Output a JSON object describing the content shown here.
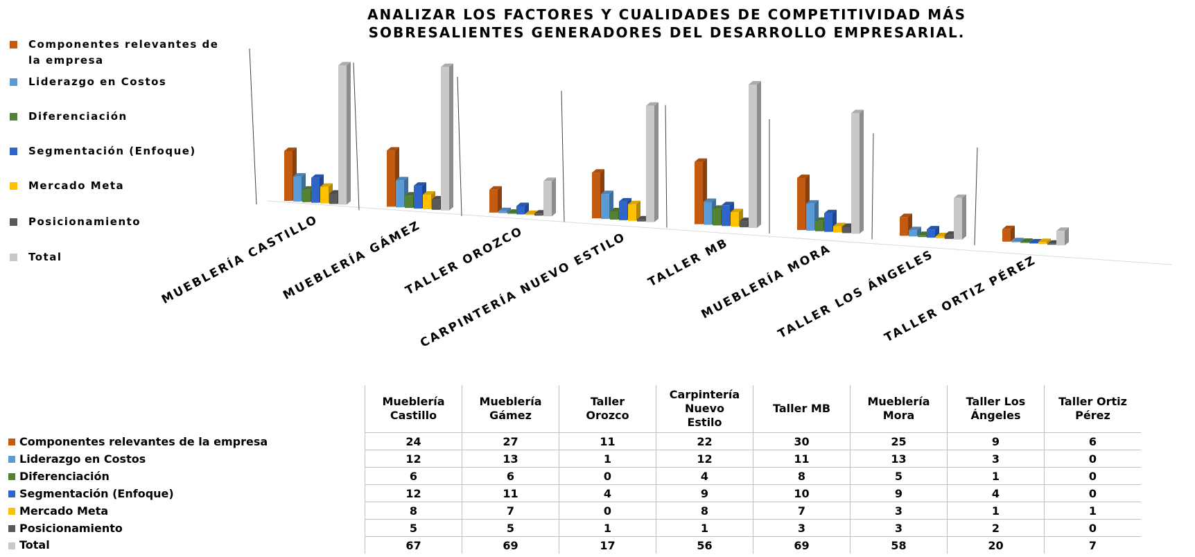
{
  "title_lines": [
    "ANALIZAR LOS FACTORES Y CUALIDADES DE COMPETITIVIDAD MÁS",
    "SOBRESALIENTES GENERADORES DEL DESARROLLO EMPRESARIAL."
  ],
  "legend": {
    "items": [
      {
        "label_lines": [
          "Componentes relevantes de",
          "la empresa"
        ],
        "color": "#C55A11"
      },
      {
        "label_lines": [
          "Liderazgo en Costos"
        ],
        "color": "#5B9BD5"
      },
      {
        "label_lines": [
          "Diferenciación"
        ],
        "color": "#548235"
      },
      {
        "label_lines": [
          "Segmentación (Enfoque)"
        ],
        "color": "#2F64C8"
      },
      {
        "label_lines": [
          "Mercado Meta"
        ],
        "color": "#FFC000"
      },
      {
        "label_lines": [
          "Posicionamiento"
        ],
        "color": "#595959"
      },
      {
        "label_lines": [
          "Total"
        ],
        "color": "#C9C9C9"
      }
    ]
  },
  "axis_categories": [
    "MUEBLERÍA CASTILLO",
    "MUEBLERÍA GÁMEZ",
    "TALLER OROZCO",
    "CARPINTERÍA NUEVO ESTILO",
    "TALLER MB",
    "MUEBLERÍA MORA",
    "TALLER LOS ÁNGELES",
    "TALLER ORTIZ PÉREZ"
  ],
  "table": {
    "columns": [
      [
        "Mueblería",
        "Castillo"
      ],
      [
        "Mueblería",
        "Gámez"
      ],
      [
        "Taller",
        "Orozco"
      ],
      [
        "Carpintería",
        "Nuevo",
        "Estilo"
      ],
      [
        "Taller MB"
      ],
      [
        "Mueblería",
        "Mora"
      ],
      [
        "Taller Los",
        "Ángeles"
      ],
      [
        "Taller Ortiz",
        "Pérez"
      ]
    ],
    "rows": [
      {
        "label": "Componentes relevantes de la empresa",
        "color": "#C55A11"
      },
      {
        "label": "Liderazgo en Costos",
        "color": "#5B9BD5"
      },
      {
        "label": "Diferenciación",
        "color": "#548235"
      },
      {
        "label": "Segmentación (Enfoque)",
        "color": "#2F64C8"
      },
      {
        "label": "Mercado Meta",
        "color": "#FFC000"
      },
      {
        "label": "Posicionamiento",
        "color": "#595959"
      },
      {
        "label": "Total",
        "color": "#C9C9C9"
      }
    ]
  },
  "chart_data": {
    "type": "bar",
    "subtype": "3d-clustered-column-with-data-table",
    "title": "ANALIZAR LOS FACTORES Y CUALIDADES DE COMPETITIVIDAD MÁS SOBRESALIENTES GENERADORES DEL DESARROLLO EMPRESARIAL.",
    "categories": [
      "Mueblería Castillo",
      "Mueblería Gámez",
      "Taller Orozco",
      "Carpintería Nuevo Estilo",
      "Taller MB",
      "Mueblería Mora",
      "Taller Los Ángeles",
      "Taller Ortiz Pérez"
    ],
    "series": [
      {
        "name": "Componentes relevantes de la empresa",
        "values": [
          24,
          27,
          11,
          22,
          30,
          25,
          9,
          6
        ]
      },
      {
        "name": "Liderazgo en Costos",
        "values": [
          12,
          13,
          1,
          12,
          11,
          13,
          3,
          0
        ]
      },
      {
        "name": "Diferenciación",
        "values": [
          6,
          6,
          0,
          4,
          8,
          5,
          1,
          0
        ]
      },
      {
        "name": "Segmentación (Enfoque)",
        "values": [
          12,
          11,
          4,
          9,
          10,
          9,
          4,
          0
        ]
      },
      {
        "name": "Mercado Meta",
        "values": [
          8,
          7,
          0,
          8,
          7,
          3,
          1,
          1
        ]
      },
      {
        "name": "Posicionamiento",
        "values": [
          5,
          5,
          1,
          1,
          3,
          3,
          2,
          0
        ]
      },
      {
        "name": "Total",
        "values": [
          67,
          69,
          17,
          56,
          69,
          58,
          20,
          7
        ]
      }
    ],
    "legend_position": "left",
    "grid": false
  }
}
